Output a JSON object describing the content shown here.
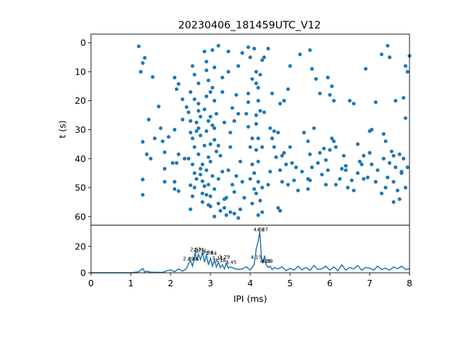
{
  "figure": {
    "title": "20230406_181459UTC_V12",
    "accent_color": "#1f77b4"
  },
  "chart_data": [
    {
      "type": "scatter",
      "name": "raster",
      "title": "20230406_181459UTC_V12",
      "xlabel": "",
      "ylabel": "t (s)",
      "xlim": [
        0,
        8
      ],
      "ylim": [
        63,
        -3
      ],
      "y_inverted": true,
      "grid": false,
      "x_ticks": [],
      "y_ticks": [
        0,
        10,
        20,
        30,
        40,
        50,
        60
      ],
      "y_tick_labels": [
        "0",
        "10",
        "20",
        "30",
        "40",
        "50",
        "60"
      ],
      "points": [
        [
          1.2,
          1.2
        ],
        [
          1.3,
          7.0
        ],
        [
          1.35,
          5.2
        ],
        [
          1.25,
          10.0
        ],
        [
          1.55,
          11.8
        ],
        [
          1.45,
          26.5
        ],
        [
          1.3,
          34.2
        ],
        [
          1.4,
          38.5
        ],
        [
          1.5,
          40.0
        ],
        [
          1.3,
          47.2
        ],
        [
          1.3,
          52.5
        ],
        [
          1.6,
          33.0
        ],
        [
          1.7,
          22.0
        ],
        [
          1.75,
          29.5
        ],
        [
          1.8,
          34.0
        ],
        [
          1.85,
          37.8
        ],
        [
          2.1,
          12.0
        ],
        [
          2.1,
          30.0
        ],
        [
          2.15,
          16.0
        ],
        [
          2.2,
          14.2
        ],
        [
          2.2,
          38.5
        ],
        [
          2.3,
          19.5
        ],
        [
          2.3,
          26.5
        ],
        [
          2.35,
          40.0
        ],
        [
          1.85,
          43.5
        ],
        [
          1.85,
          48.0
        ],
        [
          2.1,
          48.0
        ],
        [
          2.1,
          50.5
        ],
        [
          2.15,
          41.5
        ],
        [
          2.2,
          51.2
        ],
        [
          1.95,
          32.5
        ],
        [
          2.05,
          41.5
        ],
        [
          2.4,
          22.2
        ],
        [
          2.5,
          17.0
        ],
        [
          2.45,
          24.0
        ],
        [
          2.5,
          27.0
        ],
        [
          2.5,
          31.0
        ],
        [
          2.55,
          33.0
        ],
        [
          2.6,
          36.0
        ],
        [
          2.55,
          42.0
        ],
        [
          2.45,
          40.0
        ],
        [
          2.6,
          45.0
        ],
        [
          2.65,
          47.0
        ],
        [
          2.5,
          49.2
        ],
        [
          2.6,
          50.0
        ],
        [
          2.55,
          53.0
        ],
        [
          2.5,
          57.5
        ],
        [
          2.55,
          8.0
        ],
        [
          2.6,
          11.0
        ],
        [
          2.7,
          14.0
        ],
        [
          2.7,
          21.0
        ],
        [
          2.75,
          25.5
        ],
        [
          2.7,
          29.5
        ],
        [
          2.75,
          32.0
        ],
        [
          2.7,
          38.5
        ],
        [
          2.75,
          43.5
        ],
        [
          2.8,
          47.8
        ],
        [
          2.8,
          52.0
        ],
        [
          2.8,
          55.0
        ],
        [
          2.85,
          3.0
        ],
        [
          2.9,
          6.5
        ],
        [
          2.9,
          9.5
        ],
        [
          2.95,
          13.0
        ],
        [
          2.9,
          18.5
        ],
        [
          2.85,
          23.0
        ],
        [
          2.95,
          27.0
        ],
        [
          2.9,
          30.5
        ],
        [
          3.0,
          35.0
        ],
        [
          2.95,
          39.5
        ],
        [
          2.9,
          44.0
        ],
        [
          2.95,
          49.0
        ],
        [
          3.0,
          53.0
        ],
        [
          3.0,
          56.5
        ],
        [
          3.05,
          2.5
        ],
        [
          3.1,
          8.5
        ],
        [
          3.05,
          15.5
        ],
        [
          3.1,
          20.0
        ],
        [
          3.15,
          24.5
        ],
        [
          3.05,
          28.5
        ],
        [
          3.1,
          33.5
        ],
        [
          3.15,
          37.5
        ],
        [
          3.0,
          41.0
        ],
        [
          3.05,
          46.0
        ],
        [
          3.1,
          50.5
        ],
        [
          3.2,
          55.5
        ],
        [
          3.25,
          58.0
        ],
        [
          3.35,
          57.0
        ],
        [
          3.4,
          59.5
        ],
        [
          3.5,
          58.5
        ],
        [
          3.6,
          59.0
        ],
        [
          3.7,
          60.5
        ],
        [
          3.3,
          12.0
        ],
        [
          3.3,
          17.0
        ],
        [
          3.45,
          10.0
        ],
        [
          3.35,
          27.5
        ],
        [
          3.5,
          31.0
        ],
        [
          3.5,
          36.0
        ],
        [
          3.45,
          44.0
        ],
        [
          3.55,
          49.0
        ],
        [
          3.4,
          53.5
        ],
        [
          3.6,
          51.5
        ],
        [
          3.65,
          46.0
        ],
        [
          3.75,
          41.0
        ],
        [
          3.8,
          48.0
        ],
        [
          3.85,
          53.5
        ],
        [
          3.75,
          57.5
        ],
        [
          3.55,
          22.5
        ],
        [
          3.65,
          18.0
        ],
        [
          3.7,
          8.0
        ],
        [
          3.8,
          3.5
        ],
        [
          3.95,
          1.5
        ],
        [
          4.0,
          5.0
        ],
        [
          4.1,
          2.0
        ],
        [
          3.45,
          3.0
        ],
        [
          3.2,
          1.0
        ],
        [
          4.05,
          12.5
        ],
        [
          4.15,
          10.0
        ],
        [
          4.15,
          14.0
        ],
        [
          4.2,
          15.5
        ],
        [
          4.2,
          20.0
        ],
        [
          4.15,
          25.0
        ],
        [
          4.25,
          23.5
        ],
        [
          4.15,
          28.0
        ],
        [
          4.2,
          33.0
        ],
        [
          4.15,
          37.0
        ],
        [
          4.2,
          41.0
        ],
        [
          4.1,
          45.0
        ],
        [
          4.2,
          48.0
        ],
        [
          4.15,
          52.0
        ],
        [
          4.25,
          54.5
        ],
        [
          4.2,
          59.5
        ],
        [
          4.3,
          58.5
        ],
        [
          4.25,
          11.0
        ],
        [
          4.3,
          6.0
        ],
        [
          4.35,
          24.0
        ],
        [
          4.3,
          36.0
        ],
        [
          4.3,
          50.0
        ],
        [
          4.35,
          5.0
        ],
        [
          4.45,
          2.0
        ],
        [
          4.55,
          17.5
        ],
        [
          4.5,
          29.5
        ],
        [
          4.6,
          30.5
        ],
        [
          4.7,
          31.0
        ],
        [
          4.55,
          33.0
        ],
        [
          4.6,
          36.0
        ],
        [
          4.65,
          39.5
        ],
        [
          4.5,
          44.5
        ],
        [
          4.45,
          49.0
        ],
        [
          4.7,
          57.0
        ],
        [
          4.75,
          58.0
        ],
        [
          4.8,
          39.0
        ],
        [
          4.75,
          44.0
        ],
        [
          4.85,
          38.0
        ],
        [
          4.9,
          42.0
        ],
        [
          5.0,
          36.0
        ],
        [
          5.05,
          41.5
        ],
        [
          5.1,
          47.5
        ],
        [
          4.95,
          49.0
        ],
        [
          5.2,
          51.0
        ],
        [
          5.3,
          44.5
        ],
        [
          5.35,
          31.0
        ],
        [
          5.45,
          34.0
        ],
        [
          5.5,
          38.5
        ],
        [
          5.55,
          43.0
        ],
        [
          5.5,
          47.5
        ],
        [
          5.45,
          50.5
        ],
        [
          5.6,
          29.5
        ],
        [
          5.7,
          41.5
        ],
        [
          5.75,
          38.0
        ],
        [
          5.8,
          45.5
        ],
        [
          5.85,
          36.5
        ],
        [
          5.9,
          40.5
        ],
        [
          5.95,
          44.0
        ],
        [
          5.9,
          49.0
        ],
        [
          6.0,
          37.0
        ],
        [
          6.05,
          33.0
        ],
        [
          6.1,
          34.0
        ],
        [
          6.15,
          36.0
        ],
        [
          6.15,
          49.0
        ],
        [
          6.25,
          47.0
        ],
        [
          6.3,
          43.5
        ],
        [
          6.35,
          39.0
        ],
        [
          6.4,
          44.0
        ],
        [
          6.45,
          50.0
        ],
        [
          6.55,
          47.5
        ],
        [
          6.6,
          51.0
        ],
        [
          6.7,
          45.0
        ],
        [
          6.75,
          41.0
        ],
        [
          6.85,
          39.0
        ],
        [
          6.95,
          46.5
        ],
        [
          7.0,
          38.0
        ],
        [
          7.05,
          42.0
        ],
        [
          7.15,
          48.0
        ],
        [
          7.2,
          44.0
        ],
        [
          7.3,
          52.0
        ],
        [
          7.35,
          40.0
        ],
        [
          7.4,
          34.0
        ],
        [
          7.45,
          46.5
        ],
        [
          7.5,
          41.5
        ],
        [
          7.55,
          37.5
        ],
        [
          7.6,
          48.0
        ],
        [
          7.65,
          43.0
        ],
        [
          7.7,
          51.0
        ],
        [
          7.75,
          38.5
        ],
        [
          7.8,
          44.5
        ],
        [
          7.85,
          40.0
        ],
        [
          7.9,
          50.0
        ],
        [
          7.95,
          43.0
        ],
        [
          5.0,
          8.0
        ],
        [
          5.25,
          4.0
        ],
        [
          5.5,
          2.5
        ],
        [
          5.75,
          17.5
        ],
        [
          5.95,
          12.0
        ],
        [
          6.0,
          18.0
        ],
        [
          6.05,
          15.0
        ],
        [
          6.1,
          20.0
        ],
        [
          6.5,
          20.0
        ],
        [
          6.6,
          21.0
        ],
        [
          6.9,
          9.0
        ],
        [
          7.0,
          30.5
        ],
        [
          7.05,
          30.0
        ],
        [
          7.15,
          20.5
        ],
        [
          7.3,
          4.0
        ],
        [
          7.45,
          1.0
        ],
        [
          7.5,
          5.0
        ],
        [
          7.65,
          20.0
        ],
        [
          7.9,
          8.0
        ],
        [
          7.95,
          10.0
        ],
        [
          8.0,
          4.5
        ],
        [
          7.85,
          19.0
        ],
        [
          7.9,
          26.0
        ],
        [
          7.8,
          45.0
        ],
        [
          7.35,
          31.5
        ],
        [
          5.55,
          9.0
        ],
        [
          5.65,
          12.5
        ],
        [
          4.75,
          21.0
        ],
        [
          4.85,
          20.0
        ],
        [
          4.95,
          16.0
        ],
        [
          2.9,
          52.5
        ],
        [
          2.95,
          56.0
        ],
        [
          3.1,
          60.0
        ],
        [
          3.2,
          47.0
        ],
        [
          3.35,
          54.0
        ],
        [
          3.3,
          44.5
        ],
        [
          3.25,
          39.0
        ],
        [
          3.2,
          35.5
        ],
        [
          2.65,
          27.5
        ],
        [
          2.7,
          23.5
        ],
        [
          2.6,
          19.5
        ],
        [
          2.65,
          30.5
        ],
        [
          2.85,
          35.5
        ],
        [
          2.8,
          42.0
        ],
        [
          2.75,
          45.5
        ],
        [
          2.85,
          49.5
        ],
        [
          3.0,
          17.0
        ],
        [
          3.0,
          25.5
        ],
        [
          3.1,
          29.5
        ],
        [
          3.6,
          27.0
        ],
        [
          3.7,
          24.5
        ],
        [
          3.95,
          17.5
        ],
        [
          3.95,
          20.5
        ],
        [
          3.9,
          24.5
        ],
        [
          3.95,
          29.0
        ],
        [
          4.05,
          33.0
        ],
        [
          4.0,
          36.0
        ],
        [
          4.05,
          42.0
        ],
        [
          4.0,
          47.0
        ],
        [
          4.1,
          50.5
        ],
        [
          4.05,
          55.5
        ],
        [
          6.4,
          42.5
        ],
        [
          6.7,
          35.0
        ],
        [
          6.85,
          47.0
        ],
        [
          6.8,
          42.0
        ],
        [
          7.4,
          50.0
        ],
        [
          7.6,
          39.0
        ],
        [
          7.6,
          55.0
        ],
        [
          7.75,
          54.0
        ],
        [
          4.8,
          48.0
        ],
        [
          5.15,
          43.0
        ],
        [
          5.45,
          47.0
        ]
      ]
    },
    {
      "type": "line",
      "name": "histogram",
      "xlabel": "IPI (ms)",
      "ylabel": "",
      "xlim": [
        0,
        8
      ],
      "ylim": [
        0,
        36
      ],
      "grid": false,
      "x_ticks": [
        0,
        1,
        2,
        3,
        4,
        5,
        6,
        7,
        8
      ],
      "x_tick_labels": [
        "0",
        "1",
        "2",
        "3",
        "4",
        "5",
        "6",
        "7",
        "8"
      ],
      "y_ticks": [
        0,
        20
      ],
      "y_tick_labels": [
        "0",
        "20"
      ],
      "x": [
        0,
        1.0,
        1.2,
        1.3,
        1.35,
        1.4,
        1.5,
        1.6,
        1.8,
        1.9,
        2.0,
        2.1,
        2.2,
        2.3,
        2.4,
        2.45,
        2.5,
        2.55,
        2.6,
        2.62,
        2.65,
        2.7,
        2.75,
        2.8,
        2.85,
        2.9,
        2.95,
        3.0,
        3.05,
        3.1,
        3.15,
        3.2,
        3.25,
        3.3,
        3.35,
        3.4,
        3.45,
        3.5,
        3.6,
        3.7,
        3.8,
        3.9,
        4.0,
        4.1,
        4.15,
        4.2,
        4.24,
        4.28,
        4.32,
        4.36,
        4.4,
        4.45,
        4.5,
        4.55,
        4.6,
        4.7,
        4.8,
        4.9,
        5.0,
        5.1,
        5.2,
        5.3,
        5.4,
        5.5,
        5.6,
        5.7,
        5.8,
        5.9,
        6.0,
        6.1,
        6.2,
        6.3,
        6.4,
        6.5,
        6.6,
        6.7,
        6.8,
        6.9,
        7.0,
        7.1,
        7.2,
        7.3,
        7.4,
        7.5,
        7.6,
        7.7,
        7.8,
        7.9,
        8.0
      ],
      "y": [
        0,
        0,
        0.8,
        3.2,
        0.6,
        1.2,
        0.5,
        0.4,
        0.3,
        1.5,
        2.2,
        0.8,
        3.0,
        1.2,
        3.2,
        7.0,
        9.0,
        5.0,
        12.0,
        16.5,
        9.0,
        14.0,
        10.0,
        15.5,
        8.0,
        13.5,
        6.0,
        11.0,
        5.0,
        9.5,
        4.5,
        8.0,
        4.0,
        6.0,
        3.0,
        7.5,
        3.5,
        4.5,
        3.2,
        2.5,
        3.0,
        4.5,
        2.0,
        6.5,
        18.0,
        24.0,
        31.0,
        12.0,
        8.0,
        13.0,
        6.0,
        4.0,
        5.0,
        2.5,
        4.0,
        3.0,
        4.5,
        1.5,
        3.5,
        2.0,
        5.0,
        2.2,
        4.0,
        1.8,
        5.5,
        2.5,
        3.0,
        5.0,
        2.0,
        4.5,
        1.5,
        6.0,
        2.0,
        4.0,
        3.0,
        5.5,
        2.0,
        4.0,
        3.5,
        2.0,
        5.0,
        2.5,
        3.5,
        2.0,
        4.5,
        3.0,
        5.0,
        2.5,
        3.0
      ],
      "annotations": [
        {
          "text": "2.63",
          "x": 2.63,
          "y": 16.5
        },
        {
          "text": "2.71",
          "x": 2.71,
          "y": 16.0
        },
        {
          "text": "2.71",
          "x": 2.77,
          "y": 15.3
        },
        {
          "text": "2.84",
          "x": 2.93,
          "y": 14.3
        },
        {
          "text": "2.84",
          "x": 3.02,
          "y": 13.3
        },
        {
          "text": "3.29",
          "x": 3.35,
          "y": 10.8
        },
        {
          "text": "3.11",
          "x": 3.18,
          "y": 9.8
        },
        {
          "text": "3.18",
          "x": 3.25,
          "y": 8.0
        },
        {
          "text": "3.45",
          "x": 3.52,
          "y": 6.8
        },
        {
          "text": "2.49",
          "x": 2.45,
          "y": 9.5
        },
        {
          "text": "2.54",
          "x": 2.57,
          "y": 9.2
        },
        {
          "text": "4.26",
          "x": 4.22,
          "y": 31.5
        },
        {
          "text": "4.27",
          "x": 4.31,
          "y": 31.5
        },
        {
          "text": "4.15",
          "x": 4.15,
          "y": 10.5
        },
        {
          "text": "4.39",
          "x": 4.38,
          "y": 7.5
        },
        {
          "text": "4.39",
          "x": 4.43,
          "y": 7.5
        }
      ]
    }
  ]
}
